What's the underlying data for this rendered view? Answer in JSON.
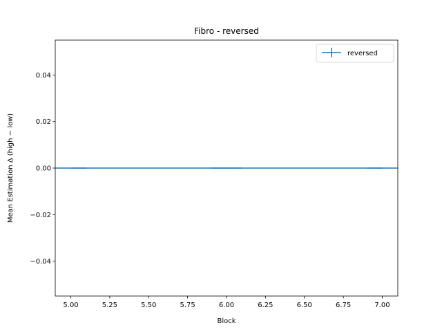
{
  "chart_data": {
    "type": "line",
    "title": "Fibro - reversed",
    "xlabel": "Block",
    "ylabel": "Mean Estimation Δ (high − low)",
    "xlim": [
      4.9,
      7.1
    ],
    "ylim": [
      -0.055,
      0.055
    ],
    "xticks": [
      "5.00",
      "5.25",
      "5.50",
      "5.75",
      "6.00",
      "6.25",
      "6.50",
      "6.75",
      "7.00"
    ],
    "yticks": [
      "−0.04",
      "−0.02",
      "0.00",
      "0.02",
      "0.04"
    ],
    "grid": false,
    "legend_position": "upper right",
    "series": [
      {
        "name": "reversed",
        "color": "#1f77b4",
        "x": [
          5,
          6,
          7
        ],
        "y": [
          0,
          0,
          0
        ],
        "xerr": [
          0.1,
          0.1,
          0.1
        ],
        "yerr": [
          0,
          0,
          0
        ]
      }
    ]
  }
}
